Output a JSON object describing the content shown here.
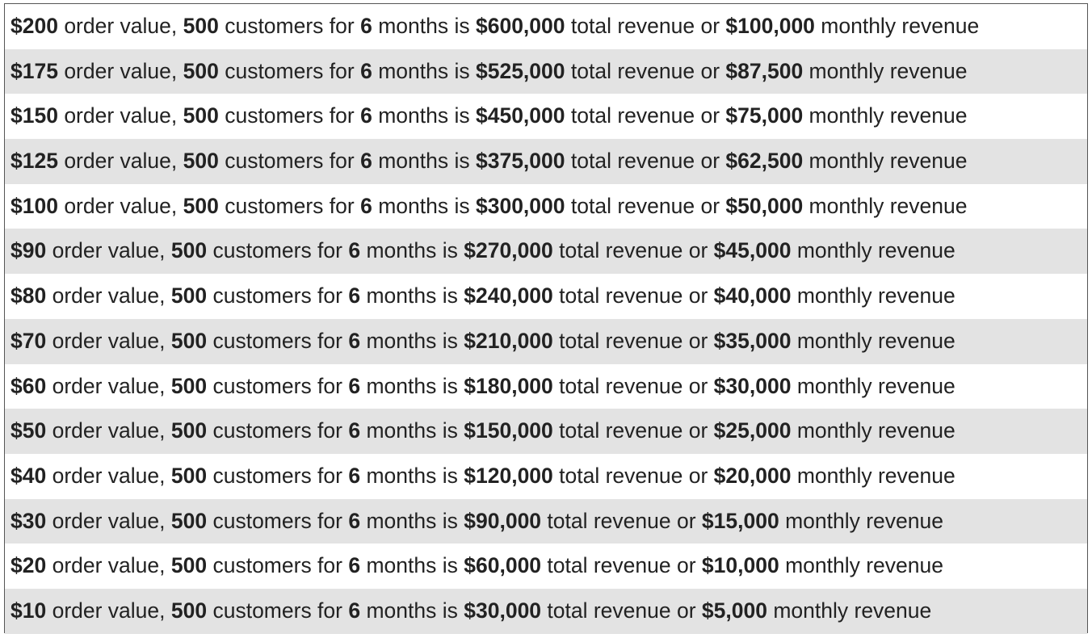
{
  "table": {
    "rows": [
      {
        "order_value": "$200",
        "customers": "500",
        "months": "6",
        "total_revenue": "$600,000",
        "monthly_revenue": "$100,000"
      },
      {
        "order_value": "$175",
        "customers": "500",
        "months": "6",
        "total_revenue": "$525,000",
        "monthly_revenue": "$87,500"
      },
      {
        "order_value": "$150",
        "customers": "500",
        "months": "6",
        "total_revenue": "$450,000",
        "monthly_revenue": "$75,000"
      },
      {
        "order_value": "$125",
        "customers": "500",
        "months": "6",
        "total_revenue": "$375,000",
        "monthly_revenue": "$62,500"
      },
      {
        "order_value": "$100",
        "customers": "500",
        "months": "6",
        "total_revenue": "$300,000",
        "monthly_revenue": "$50,000"
      },
      {
        "order_value": "$90",
        "customers": "500",
        "months": "6",
        "total_revenue": "$270,000",
        "monthly_revenue": "$45,000"
      },
      {
        "order_value": "$80",
        "customers": "500",
        "months": "6",
        "total_revenue": "$240,000",
        "monthly_revenue": "$40,000"
      },
      {
        "order_value": "$70",
        "customers": "500",
        "months": "6",
        "total_revenue": "$210,000",
        "monthly_revenue": "$35,000"
      },
      {
        "order_value": "$60",
        "customers": "500",
        "months": "6",
        "total_revenue": "$180,000",
        "monthly_revenue": "$30,000"
      },
      {
        "order_value": "$50",
        "customers": "500",
        "months": "6",
        "total_revenue": "$150,000",
        "monthly_revenue": "$25,000"
      },
      {
        "order_value": "$40",
        "customers": "500",
        "months": "6",
        "total_revenue": "$120,000",
        "monthly_revenue": "$20,000"
      },
      {
        "order_value": "$30",
        "customers": "500",
        "months": "6",
        "total_revenue": "$90,000",
        "monthly_revenue": "$15,000"
      },
      {
        "order_value": "$20",
        "customers": "500",
        "months": "6",
        "total_revenue": "$60,000",
        "monthly_revenue": "$10,000"
      },
      {
        "order_value": "$10",
        "customers": "500",
        "months": "6",
        "total_revenue": "$30,000",
        "monthly_revenue": "$5,000"
      }
    ],
    "phrases": {
      "after_order_value": " order value, ",
      "after_customers": " customers for ",
      "after_months": " months is ",
      "after_total": " total revenue or ",
      "after_monthly": " monthly revenue"
    }
  },
  "colors": {
    "row_alt_background": "#e3e3e3",
    "row_background": "#ffffff",
    "border": "#555555",
    "text": "#222222"
  }
}
